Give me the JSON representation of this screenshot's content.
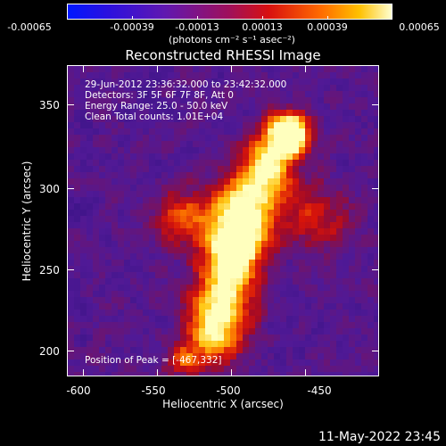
{
  "colorbar": {
    "tick_labels": [
      "-0.00065",
      "-0.00039",
      "-0.00013",
      "0.00013",
      "0.00039",
      "0.00065"
    ],
    "units": "(photons cm⁻² s⁻¹ asec⁻²)"
  },
  "title": "Reconstructed RHESSI Image",
  "annotations": {
    "line1": "29-Jun-2012 23:36:32.000 to 23:42:32.000",
    "line2": "Detectors: 3F 5F 6F 7F 8F, Att 0",
    "line3": "Energy Range: 25.0 - 50.0 keV",
    "line4": "Clean     Total counts: 1.01E+04",
    "peak": "Position of Peak = [-467,332]"
  },
  "axes": {
    "xlabel": "Heliocentric X (arcsec)",
    "ylabel": "Heliocentric Y (arcsec)",
    "xticks": [
      "-600",
      "-550",
      "-500",
      "-450"
    ],
    "yticks": [
      "350",
      "300",
      "250",
      "200"
    ]
  },
  "timestamp": "11-May-2022 23:45",
  "colors": {
    "background": "#000000",
    "map_low": "#3a1590",
    "map_high": "#ffffa0"
  }
}
